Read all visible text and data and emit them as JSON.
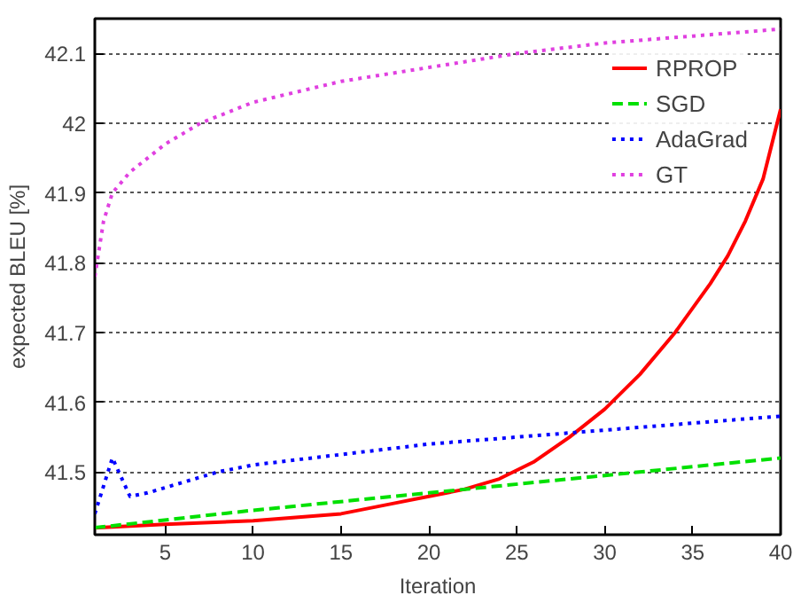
{
  "chart_data": {
    "type": "line",
    "xlabel": "Iteration",
    "ylabel": "expected BLEU [%]",
    "xlim": [
      1,
      40
    ],
    "ylim": [
      41.41,
      42.15
    ],
    "xticks": [
      5,
      10,
      15,
      20,
      25,
      30,
      35,
      40
    ],
    "yticks": [
      41.5,
      41.6,
      41.7,
      41.8,
      41.9,
      42,
      42.1
    ],
    "grid": "y",
    "legend": "top right",
    "series": [
      {
        "name": "RPROP",
        "color": "#ff0000",
        "line_style": "solid",
        "x": [
          1,
          5,
          10,
          15,
          18,
          20,
          22,
          24,
          26,
          28,
          30,
          32,
          34,
          36,
          37,
          38,
          39,
          40
        ],
        "values": [
          41.42,
          41.425,
          41.43,
          41.44,
          41.455,
          41.465,
          41.475,
          41.49,
          41.515,
          41.55,
          41.59,
          41.64,
          41.7,
          41.77,
          41.81,
          41.86,
          41.92,
          42.02
        ]
      },
      {
        "name": "SGD",
        "color": "#00e000",
        "line_style": "dashed",
        "x": [
          1,
          10,
          20,
          30,
          40
        ],
        "values": [
          41.42,
          41.445,
          41.47,
          41.495,
          41.52
        ]
      },
      {
        "name": "AdaGrad",
        "color": "#0000ff",
        "line_style": "dotted",
        "x": [
          1,
          2,
          3,
          4,
          6,
          8,
          10,
          15,
          20,
          25,
          30,
          35,
          40
        ],
        "values": [
          41.44,
          41.52,
          41.465,
          41.47,
          41.485,
          41.5,
          41.51,
          41.525,
          41.54,
          41.55,
          41.56,
          41.57,
          41.58
        ]
      },
      {
        "name": "GT",
        "color": "#e040e0",
        "line_style": "dotted",
        "x": [
          1,
          1.5,
          2,
          3,
          5,
          7,
          10,
          15,
          20,
          25,
          30,
          35,
          40
        ],
        "values": [
          41.78,
          41.86,
          41.9,
          41.93,
          41.97,
          42.0,
          42.03,
          42.06,
          42.08,
          42.1,
          42.115,
          42.125,
          42.135
        ]
      }
    ]
  }
}
